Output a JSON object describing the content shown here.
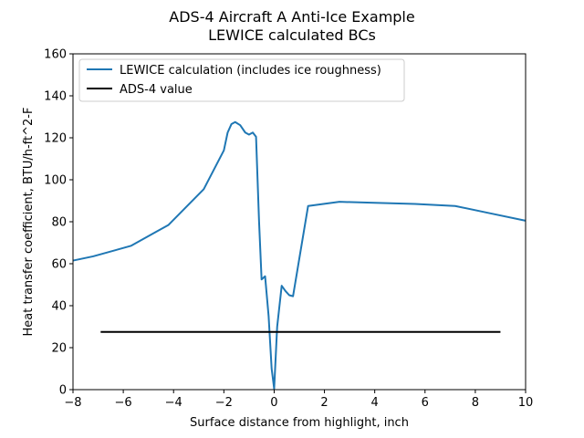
{
  "chart_data": {
    "type": "line",
    "title": "ADS-4 Aircraft A Anti-Ice Example",
    "subtitle": "LEWICE calculated BCs",
    "xlabel": "Surface distance from highlight, inch",
    "ylabel": "Heat transfer coefficient, BTU/h-ft^2-F",
    "xlim": [
      -8,
      10
    ],
    "ylim": [
      0,
      160
    ],
    "xticks": [
      -8,
      -6,
      -4,
      -2,
      0,
      2,
      4,
      6,
      8,
      10
    ],
    "xtick_labels": [
      "−8",
      "−6",
      "−4",
      "−2",
      "0",
      "2",
      "4",
      "6",
      "8",
      "10"
    ],
    "yticks": [
      0,
      20,
      40,
      60,
      80,
      100,
      120,
      140,
      160
    ],
    "ytick_labels": [
      "0",
      "20",
      "40",
      "60",
      "80",
      "100",
      "120",
      "140",
      "160"
    ],
    "grid": false,
    "legend_position": "upper-left",
    "series": [
      {
        "name": "LEWICE calculation (includes ice roughness)",
        "color": "#1f77b4",
        "x": [
          -8.0,
          -7.2,
          -5.7,
          -4.2,
          -2.8,
          -2.0,
          -1.85,
          -1.7,
          -1.55,
          -1.35,
          -1.15,
          -1.0,
          -0.85,
          -0.72,
          -0.6,
          -0.5,
          -0.36,
          -0.22,
          -0.1,
          0.0,
          0.12,
          0.3,
          0.45,
          0.6,
          0.75,
          1.35,
          2.6,
          4.0,
          5.6,
          7.2,
          8.6,
          10.0
        ],
        "y": [
          61.5,
          63.5,
          68.5,
          78.5,
          95.5,
          114.0,
          122.5,
          126.5,
          127.5,
          126.0,
          122.5,
          121.5,
          122.5,
          120.5,
          80.0,
          52.5,
          54.0,
          35.0,
          10.0,
          0.5,
          30.0,
          49.5,
          47.0,
          45.0,
          44.5,
          87.5,
          89.5,
          89.0,
          88.5,
          87.5,
          84.0,
          80.5
        ]
      },
      {
        "name": "ADS-4 value",
        "color": "#000000",
        "x": [
          -6.9,
          9.0
        ],
        "y": [
          27.5,
          27.5
        ]
      }
    ]
  }
}
